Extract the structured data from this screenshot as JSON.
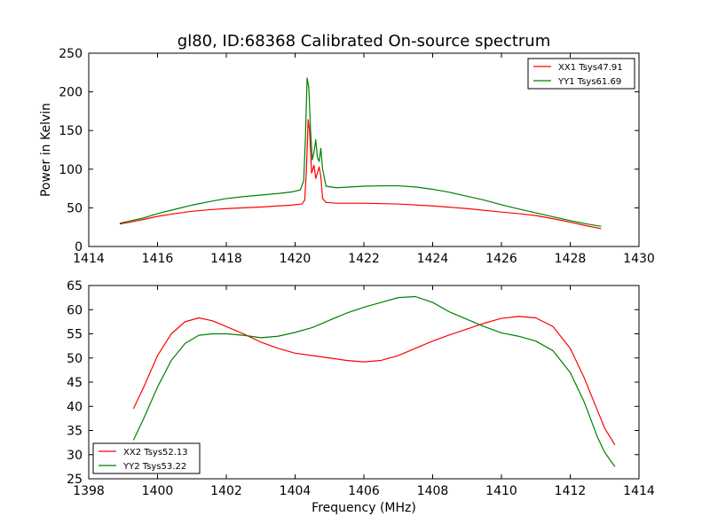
{
  "chart_data": [
    {
      "type": "line",
      "title": "gl80, ID:68368 Calibrated On-source spectrum",
      "xlabel": "",
      "ylabel": "Power in Kelvin",
      "xlim": [
        1414,
        1430
      ],
      "ylim": [
        0,
        250
      ],
      "xticks": [
        1414,
        1416,
        1418,
        1420,
        1422,
        1424,
        1426,
        1428,
        1430
      ],
      "yticks": [
        0,
        50,
        100,
        150,
        200,
        250
      ],
      "grid": false,
      "legend": "top-right",
      "series": [
        {
          "name": "XX1 Tsys47.91",
          "color": "#ff0000",
          "points": [
            [
              1414.9,
              29
            ],
            [
              1415.2,
              31.5
            ],
            [
              1415.6,
              35
            ],
            [
              1416.0,
              39
            ],
            [
              1416.5,
              42.5
            ],
            [
              1417.0,
              45.5
            ],
            [
              1417.5,
              47.5
            ],
            [
              1418.0,
              49
            ],
            [
              1418.5,
              50
            ],
            [
              1419.0,
              51
            ],
            [
              1419.5,
              52.5
            ],
            [
              1419.9,
              53.5
            ],
            [
              1420.2,
              55
            ],
            [
              1420.28,
              60
            ],
            [
              1420.33,
              100
            ],
            [
              1420.38,
              164
            ],
            [
              1420.42,
              150
            ],
            [
              1420.48,
              95
            ],
            [
              1420.55,
              105
            ],
            [
              1420.6,
              88
            ],
            [
              1420.65,
              95
            ],
            [
              1420.7,
              103
            ],
            [
              1420.75,
              90
            ],
            [
              1420.8,
              62
            ],
            [
              1420.9,
              57
            ],
            [
              1421.2,
              56
            ],
            [
              1422.0,
              56
            ],
            [
              1423.0,
              55
            ],
            [
              1424.0,
              52.5
            ],
            [
              1425.0,
              49
            ],
            [
              1426.0,
              44.5
            ],
            [
              1426.5,
              42.5
            ],
            [
              1427.0,
              40
            ],
            [
              1427.5,
              36
            ],
            [
              1428.0,
              31.5
            ],
            [
              1428.5,
              26.5
            ],
            [
              1428.9,
              23
            ]
          ]
        },
        {
          "name": "YY1 Tsys61.69",
          "color": "#008000",
          "points": [
            [
              1414.9,
              30
            ],
            [
              1415.2,
              33
            ],
            [
              1415.6,
              37
            ],
            [
              1416.0,
              42.5
            ],
            [
              1416.5,
              48
            ],
            [
              1417.0,
              53.5
            ],
            [
              1417.5,
              58
            ],
            [
              1418.0,
              62
            ],
            [
              1418.5,
              64.5
            ],
            [
              1419.0,
              66.5
            ],
            [
              1419.5,
              68.5
            ],
            [
              1419.9,
              70.5
            ],
            [
              1420.15,
              73
            ],
            [
              1420.25,
              85
            ],
            [
              1420.3,
              140
            ],
            [
              1420.35,
              218
            ],
            [
              1420.4,
              205
            ],
            [
              1420.45,
              150
            ],
            [
              1420.5,
              112
            ],
            [
              1420.55,
              122
            ],
            [
              1420.6,
              138
            ],
            [
              1420.65,
              115
            ],
            [
              1420.7,
              110
            ],
            [
              1420.75,
              127
            ],
            [
              1420.8,
              100
            ],
            [
              1420.9,
              78
            ],
            [
              1421.2,
              76
            ],
            [
              1421.6,
              77
            ],
            [
              1422.0,
              78
            ],
            [
              1422.5,
              78.5
            ],
            [
              1423.0,
              78.5
            ],
            [
              1423.5,
              77
            ],
            [
              1424.0,
              74
            ],
            [
              1424.5,
              70
            ],
            [
              1425.0,
              65
            ],
            [
              1425.5,
              60
            ],
            [
              1426.0,
              54
            ],
            [
              1426.5,
              48.5
            ],
            [
              1427.0,
              43.5
            ],
            [
              1427.5,
              38.5
            ],
            [
              1428.0,
              33.5
            ],
            [
              1428.5,
              29
            ],
            [
              1428.9,
              26
            ]
          ]
        }
      ]
    },
    {
      "type": "line",
      "title": "",
      "xlabel": "Frequency (MHz)",
      "ylabel": "",
      "xlim": [
        1398,
        1414
      ],
      "ylim": [
        25,
        65
      ],
      "xticks": [
        1398,
        1400,
        1402,
        1404,
        1406,
        1408,
        1410,
        1412,
        1414
      ],
      "yticks": [
        25,
        30,
        35,
        40,
        45,
        50,
        55,
        60,
        65
      ],
      "grid": false,
      "legend": "bottom-left",
      "series": [
        {
          "name": "XX2 Tsys52.13",
          "color": "#ff0000",
          "points": [
            [
              1399.3,
              39.5
            ],
            [
              1399.6,
              44
            ],
            [
              1400.0,
              50.5
            ],
            [
              1400.4,
              55
            ],
            [
              1400.8,
              57.5
            ],
            [
              1401.2,
              58.3
            ],
            [
              1401.6,
              57.7
            ],
            [
              1402.0,
              56.5
            ],
            [
              1402.5,
              55
            ],
            [
              1403.0,
              53.3
            ],
            [
              1403.5,
              52
            ],
            [
              1404.0,
              51
            ],
            [
              1404.5,
              50.5
            ],
            [
              1405.0,
              50
            ],
            [
              1405.5,
              49.5
            ],
            [
              1406.0,
              49.2
            ],
            [
              1406.5,
              49.5
            ],
            [
              1407.0,
              50.5
            ],
            [
              1407.5,
              52
            ],
            [
              1408.0,
              53.5
            ],
            [
              1408.5,
              54.8
            ],
            [
              1409.0,
              56
            ],
            [
              1409.5,
              57.2
            ],
            [
              1410.0,
              58.2
            ],
            [
              1410.5,
              58.6
            ],
            [
              1411.0,
              58.3
            ],
            [
              1411.5,
              56.5
            ],
            [
              1412.0,
              52
            ],
            [
              1412.4,
              46
            ],
            [
              1412.8,
              39
            ],
            [
              1413.0,
              35.5
            ],
            [
              1413.3,
              32
            ]
          ]
        },
        {
          "name": "YY2 Tsys53.22",
          "color": "#008000",
          "points": [
            [
              1399.3,
              33
            ],
            [
              1399.6,
              37.5
            ],
            [
              1400.0,
              44
            ],
            [
              1400.4,
              49.5
            ],
            [
              1400.8,
              53
            ],
            [
              1401.2,
              54.7
            ],
            [
              1401.6,
              55
            ],
            [
              1402.0,
              55
            ],
            [
              1402.5,
              54.7
            ],
            [
              1403.0,
              54.2
            ],
            [
              1403.5,
              54.5
            ],
            [
              1404.0,
              55.3
            ],
            [
              1404.5,
              56.3
            ],
            [
              1405.0,
              57.8
            ],
            [
              1405.5,
              59.3
            ],
            [
              1406.0,
              60.5
            ],
            [
              1406.5,
              61.5
            ],
            [
              1407.0,
              62.5
            ],
            [
              1407.5,
              62.7
            ],
            [
              1408.0,
              61.5
            ],
            [
              1408.5,
              59.5
            ],
            [
              1409.0,
              58
            ],
            [
              1409.5,
              56.5
            ],
            [
              1410.0,
              55.2
            ],
            [
              1410.5,
              54.5
            ],
            [
              1411.0,
              53.5
            ],
            [
              1411.5,
              51.5
            ],
            [
              1412.0,
              47
            ],
            [
              1412.4,
              41
            ],
            [
              1412.8,
              33.5
            ],
            [
              1413.0,
              30.5
            ],
            [
              1413.3,
              27.5
            ]
          ]
        }
      ]
    }
  ]
}
